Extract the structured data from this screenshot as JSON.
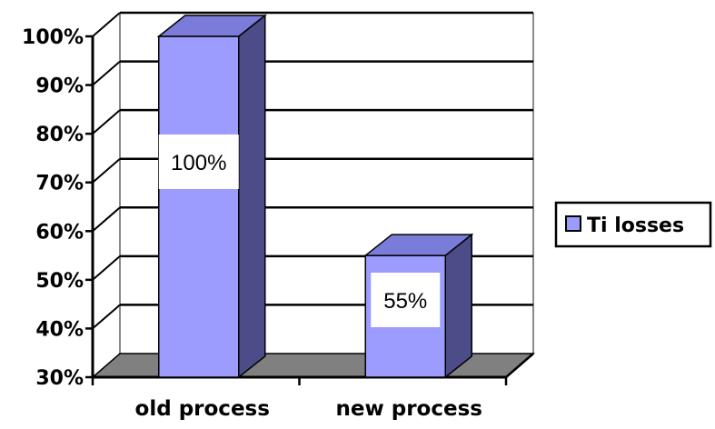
{
  "chart_data": {
    "type": "bar",
    "categories": [
      "old process",
      "new process"
    ],
    "series": [
      {
        "name": "Ti losses",
        "values": [
          100,
          55
        ]
      }
    ],
    "data_labels": [
      "100%",
      "55%"
    ],
    "y_ticks": [
      "30%",
      "40%",
      "50%",
      "60%",
      "70%",
      "80%",
      "90%",
      "100%"
    ],
    "ylim": [
      30,
      100
    ],
    "grid": true,
    "legend_position": "right",
    "style": "3d-column"
  },
  "colors": {
    "bar_front": "#9c9cff",
    "bar_side": "#4c4c88",
    "bar_top": "#7b7bd9",
    "floor": "#808080",
    "grid": "#000000",
    "wall_edge": "#8a8a8a"
  }
}
